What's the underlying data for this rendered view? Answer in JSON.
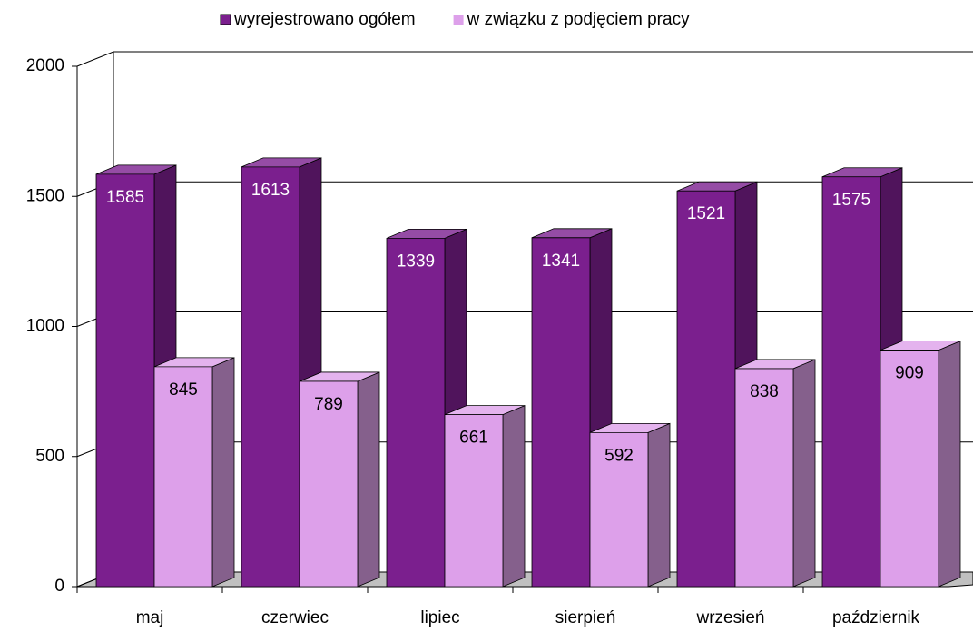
{
  "chart_data": {
    "type": "bar3d",
    "categories": [
      "maj",
      "czerwiec",
      "lipiec",
      "sierpień",
      "wrzesień",
      "październik"
    ],
    "series": [
      {
        "name": "wyrejestrowano ogółem",
        "color": "#7b1f8e",
        "values": [
          1585,
          1613,
          1339,
          1341,
          1521,
          1575
        ]
      },
      {
        "name": "w związku z podjęciem pracy",
        "color": "#dda0ea",
        "values": [
          845,
          789,
          661,
          592,
          838,
          909
        ]
      }
    ],
    "ylim": [
      0,
      2000
    ],
    "yticks": [
      0,
      500,
      1000,
      1500,
      2000
    ],
    "grid": true,
    "legend": "top"
  }
}
